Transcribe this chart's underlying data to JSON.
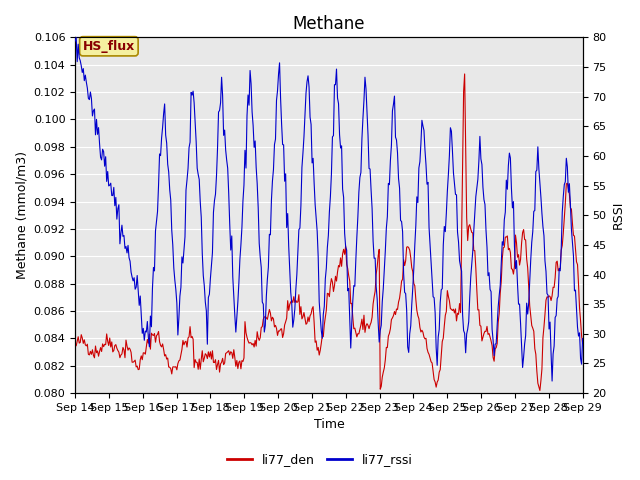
{
  "title": "Methane",
  "ylabel_left": "Methane (mmol/m3)",
  "ylabel_right": "RSSI",
  "xlabel": "Time",
  "ylim_left": [
    0.08,
    0.106
  ],
  "ylim_right": [
    20,
    80
  ],
  "yticks_left": [
    0.08,
    0.082,
    0.084,
    0.086,
    0.088,
    0.09,
    0.092,
    0.094,
    0.096,
    0.098,
    0.1,
    0.102,
    0.104,
    0.106
  ],
  "yticks_right": [
    20,
    25,
    30,
    35,
    40,
    45,
    50,
    55,
    60,
    65,
    70,
    75,
    80
  ],
  "xtick_labels": [
    "Sep 14",
    "Sep 15",
    "Sep 16",
    "Sep 17",
    "Sep 18",
    "Sep 19",
    "Sep 20",
    "Sep 21",
    "Sep 22",
    "Sep 23",
    "Sep 24",
    "Sep 25",
    "Sep 26",
    "Sep 27",
    "Sep 28",
    "Sep 29"
  ],
  "color_red": "#cc0000",
  "color_blue": "#0000cc",
  "legend_labels": [
    "li77_den",
    "li77_rssi"
  ],
  "annotation_text": "HS_flux",
  "annotation_color": "#880000",
  "annotation_bg": "#f5f0a0",
  "annotation_border": "#aa8800",
  "bg_color": "#e8e8e8",
  "fig_bg": "#ffffff",
  "title_fontsize": 12,
  "axis_fontsize": 9,
  "tick_fontsize": 8,
  "legend_fontsize": 9
}
